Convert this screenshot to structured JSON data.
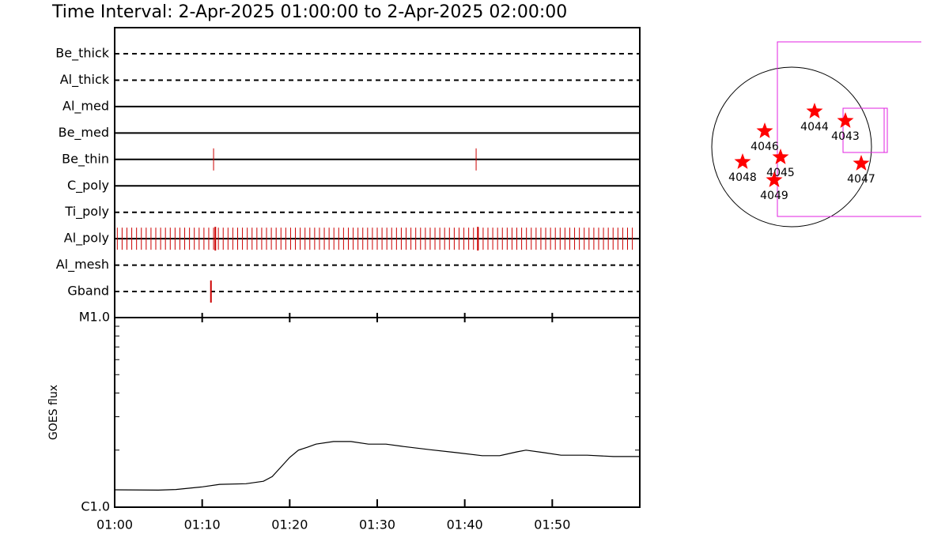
{
  "chart_data": [
    {
      "type": "timeline",
      "title": "Time Interval:  2-Apr-2025 01:00:00 to  2-Apr-2025 02:00:00",
      "xlim": [
        0,
        60
      ],
      "event_color": "#cc0000",
      "rows": [
        {
          "name": "Be_thick",
          "style": "dashed",
          "events": []
        },
        {
          "name": "Al_thick",
          "style": "dashed",
          "events": []
        },
        {
          "name": "Al_med",
          "style": "solid",
          "events": []
        },
        {
          "name": "Be_med",
          "style": "solid",
          "events": []
        },
        {
          "name": "Be_thin",
          "style": "solid",
          "events": [
            11.3,
            41.3
          ]
        },
        {
          "name": "C_poly",
          "style": "solid",
          "events": []
        },
        {
          "name": "Ti_poly",
          "style": "dashed",
          "events": []
        },
        {
          "name": "Al_poly",
          "style": "solid",
          "events": [
            0.3,
            0.85,
            1.4,
            1.95,
            2.5,
            3.05,
            3.6,
            4.15,
            4.7,
            5.25,
            5.8,
            6.35,
            6.9,
            7.45,
            8,
            8.55,
            9.1,
            9.65,
            10.2,
            10.75,
            11.3,
            11.85,
            12.4,
            12.95,
            13.5,
            14.05,
            14.6,
            15.15,
            15.7,
            16.25,
            16.8,
            17.35,
            17.9,
            18.45,
            19,
            19.55,
            20.1,
            20.65,
            21.2,
            21.75,
            22.3,
            22.85,
            23.4,
            23.95,
            24.5,
            25.05,
            25.6,
            26.15,
            26.7,
            27.25,
            27.8,
            28.35,
            28.9,
            29.45,
            30,
            30.55,
            31.1,
            31.65,
            32.2,
            32.75,
            33.3,
            33.85,
            34.4,
            34.95,
            35.5,
            36.05,
            36.6,
            37.15,
            37.7,
            38.25,
            38.8,
            39.35,
            39.9,
            40.45,
            41,
            41.55,
            42.1,
            42.65,
            43.2,
            43.75,
            44.3,
            44.85,
            45.4,
            45.95,
            46.5,
            47.05,
            47.6,
            48.15,
            48.7,
            49.25,
            49.8,
            50.35,
            50.9,
            51.45,
            52,
            52.55,
            53.1,
            53.65,
            54.2,
            54.75,
            55.3,
            55.85,
            56.4,
            56.95,
            57.5,
            58.05,
            58.6,
            59.15
          ],
          "long_events": [
            11.5,
            41.5
          ]
        },
        {
          "name": "Al_mesh",
          "style": "dashed",
          "events": []
        },
        {
          "name": "Gband",
          "style": "dashed",
          "events": [
            11
          ]
        }
      ]
    },
    {
      "type": "line",
      "ylabel": "GOES flux",
      "log_scale": true,
      "xlim": [
        0,
        60
      ],
      "xticks": [
        {
          "value": 0,
          "label": "01:00"
        },
        {
          "value": 10,
          "label": "01:10"
        },
        {
          "value": 20,
          "label": "01:20"
        },
        {
          "value": 30,
          "label": "01:30"
        },
        {
          "value": 40,
          "label": "01:40"
        },
        {
          "value": 50,
          "label": "01:50"
        }
      ],
      "ylim": [
        1e-06,
        1e-05
      ],
      "yticks": [
        {
          "value": 1e-06,
          "label": "C1.0"
        },
        {
          "value": 1e-05,
          "label": "M1.0"
        }
      ],
      "minor_yticks": [
        2e-06,
        3e-06,
        4e-06,
        5e-06,
        6e-06,
        7e-06,
        8e-06,
        9e-06
      ],
      "color": "#000000",
      "x": [
        0,
        5,
        7,
        10,
        12,
        15,
        17,
        18,
        19,
        20,
        21,
        22,
        23,
        25,
        27,
        29,
        31,
        33,
        36,
        39,
        42,
        44,
        46,
        47,
        49,
        51,
        54,
        57,
        60
      ],
      "values": [
        1.235e-06,
        1.23e-06,
        1.24e-06,
        1.28e-06,
        1.32e-06,
        1.33e-06,
        1.37e-06,
        1.45e-06,
        1.63e-06,
        1.83e-06,
        2e-06,
        2.07e-06,
        2.15e-06,
        2.22e-06,
        2.22e-06,
        2.15e-06,
        2.15e-06,
        2.09e-06,
        2.01e-06,
        1.94e-06,
        1.87e-06,
        1.87e-06,
        1.96e-06,
        2e-06,
        1.94e-06,
        1.88e-06,
        1.88e-06,
        1.85e-06,
        1.85e-06
      ]
    }
  ],
  "map": {
    "regions": [
      "4044",
      "4043",
      "4046",
      "4045",
      "4048",
      "4047",
      "4049"
    ],
    "star_color": "#ff0000",
    "box_color": "#e020e0"
  }
}
